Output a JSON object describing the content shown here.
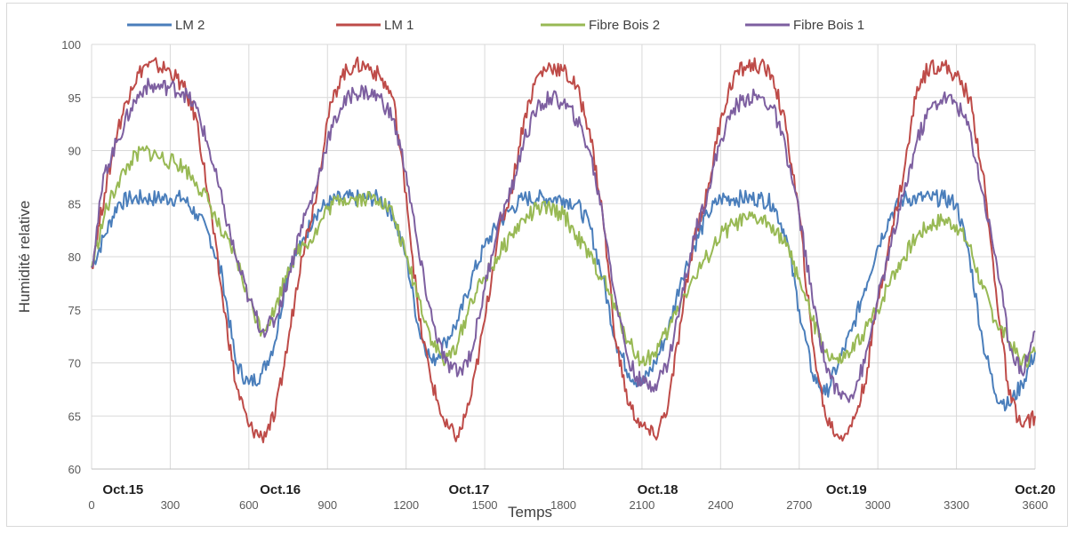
{
  "chart_data": {
    "type": "line",
    "title": "",
    "xlabel": "Temps",
    "ylabel": "Humidité relative",
    "xlim": [
      0,
      3600
    ],
    "ylim": [
      60,
      100
    ],
    "grid": true,
    "legend_position": "top",
    "x_ticks": [
      "0",
      "300",
      "600",
      "900",
      "1200",
      "1500",
      "1800",
      "2100",
      "2400",
      "2700",
      "3000",
      "3300",
      "3600"
    ],
    "y_ticks": [
      "60",
      "65",
      "70",
      "75",
      "80",
      "85",
      "90",
      "95",
      "100"
    ],
    "date_labels": [
      {
        "x": 120,
        "text": "Oct.15"
      },
      {
        "x": 720,
        "text": "Oct.16"
      },
      {
        "x": 1440,
        "text": "Oct.17"
      },
      {
        "x": 2160,
        "text": "Oct.18"
      },
      {
        "x": 2880,
        "text": "Oct.19"
      },
      {
        "x": 3600,
        "text": "Oct.20"
      }
    ],
    "x": [
      0,
      50,
      100,
      150,
      200,
      250,
      300,
      350,
      400,
      450,
      500,
      550,
      600,
      650,
      700,
      750,
      800,
      850,
      900,
      950,
      1000,
      1050,
      1100,
      1150,
      1200,
      1250,
      1300,
      1350,
      1400,
      1450,
      1500,
      1550,
      1600,
      1650,
      1700,
      1750,
      1800,
      1850,
      1900,
      1950,
      2000,
      2050,
      2100,
      2150,
      2200,
      2250,
      2300,
      2350,
      2400,
      2450,
      2500,
      2550,
      2600,
      2650,
      2700,
      2750,
      2800,
      2850,
      2900,
      2950,
      3000,
      3050,
      3100,
      3150,
      3200,
      3250,
      3300,
      3350,
      3400,
      3450,
      3500,
      3550,
      3600
    ],
    "series": [
      {
        "name": "LM 2",
        "color": "#4a7ebb",
        "values": [
          79,
          82,
          85,
          85.5,
          85.5,
          85.5,
          85.5,
          85.5,
          84,
          82,
          78,
          70,
          68,
          69,
          72,
          79,
          81,
          84,
          85,
          85.5,
          85.5,
          85.5,
          85.5,
          84,
          80,
          73,
          70,
          72,
          74,
          78,
          81,
          83,
          84.5,
          85.5,
          85.5,
          85.5,
          85.5,
          85,
          83,
          78,
          72,
          69,
          68,
          70,
          73,
          78,
          81,
          84,
          85.5,
          85.5,
          85.5,
          85.5,
          85,
          82,
          75,
          69,
          67,
          70,
          73,
          77,
          81,
          84,
          85.5,
          85.5,
          85.5,
          85.5,
          85,
          80,
          72,
          67,
          66,
          68,
          71
        ]
      },
      {
        "name": "LM 1",
        "color": "#be4b48",
        "values": [
          79,
          86,
          92,
          96,
          98,
          98,
          97.5,
          96,
          93,
          85,
          76,
          68,
          64,
          63,
          65,
          72,
          80,
          85,
          93,
          97,
          98,
          98,
          97,
          95,
          86,
          74,
          68,
          64,
          63,
          67,
          74,
          82,
          86,
          93,
          97,
          98,
          97.5,
          96,
          92,
          84,
          72,
          66,
          64,
          63,
          66,
          74,
          82,
          86,
          93,
          97,
          98,
          98,
          97,
          92,
          84,
          72,
          65,
          63,
          64,
          68,
          76,
          82,
          88,
          96,
          98,
          98,
          97,
          95,
          88,
          77,
          67,
          64,
          65
        ]
      },
      {
        "name": "Fibre Bois 2",
        "color": "#98b954",
        "values": [
          79,
          84,
          87,
          89,
          90,
          89.5,
          89,
          88.5,
          87,
          85,
          82,
          80,
          76,
          73,
          75,
          79,
          81,
          82,
          84.5,
          85.5,
          85.5,
          85.5,
          85.5,
          84,
          80,
          76,
          72,
          70,
          72,
          76,
          78,
          80,
          82,
          83.5,
          84.5,
          84.5,
          84,
          82,
          80,
          78,
          75,
          72,
          70,
          71,
          73,
          76,
          78,
          80,
          82,
          83,
          83.5,
          83.5,
          83,
          81,
          78,
          74,
          71,
          70,
          71,
          73,
          75,
          78,
          80,
          82,
          83,
          83.5,
          83,
          81,
          77,
          74,
          72,
          70,
          71
        ]
      },
      {
        "name": "Fibre Bois 1",
        "color": "#7d5fa0",
        "values": [
          79,
          88,
          91,
          94,
          96,
          96,
          96,
          95.5,
          94,
          90,
          85,
          80,
          76,
          73,
          74,
          78,
          83,
          86,
          91,
          94,
          95.5,
          95.5,
          95,
          93,
          88,
          80,
          74,
          70,
          69,
          71,
          77,
          83,
          86,
          91,
          94,
          95,
          94.5,
          93,
          90,
          84,
          76,
          70,
          68,
          68,
          70,
          76,
          82,
          86,
          91,
          94,
          95,
          95,
          94,
          90,
          84,
          76,
          70,
          67,
          67,
          70,
          76,
          81,
          86,
          91,
          94,
          95,
          94.5,
          92,
          86,
          80,
          72,
          69,
          73
        ]
      }
    ]
  }
}
